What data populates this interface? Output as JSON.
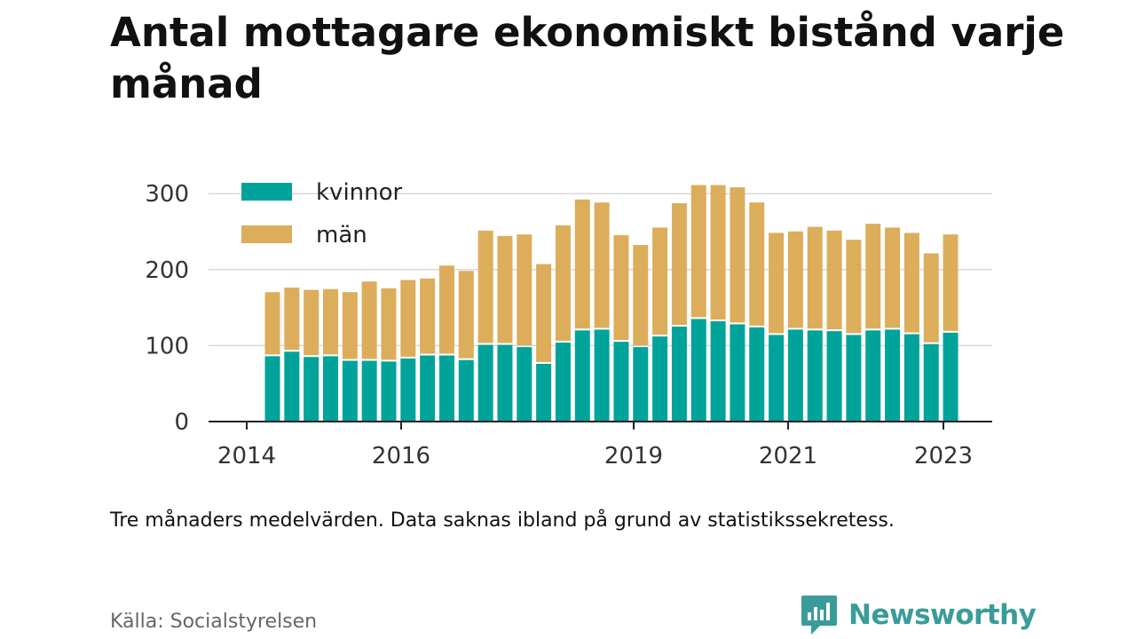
{
  "title": "Antal mottagare ekonomiskt bistånd varje månad",
  "note": "Tre månaders medelvärden. Data saknas ibland på grund av statistikssekretess.",
  "source": "Källa: Socialstyrelsen",
  "brand": "Newsworthy",
  "colors": {
    "women": "#00a39a",
    "men": "#dcad5a",
    "grid": "#d8d8d8",
    "brand": "#3a9c98"
  },
  "chart_data": {
    "type": "bar",
    "stacked": true,
    "legend_position": "top-left",
    "grid": true,
    "ylim": [
      0,
      300
    ],
    "y_ticks": [
      0,
      100,
      200,
      300
    ],
    "x_ticks": [
      "2014",
      "2016",
      "2019",
      "2021",
      "2023"
    ],
    "series": [
      {
        "name": "kvinnor",
        "values": [
          86,
          92,
          85,
          86,
          80,
          80,
          79,
          83,
          87,
          87,
          81,
          101,
          101,
          98,
          76,
          104,
          120,
          121,
          105,
          98,
          112,
          125,
          135,
          132,
          128,
          124,
          114,
          121,
          120,
          119,
          114,
          120,
          121,
          115,
          102,
          117
        ]
      },
      {
        "name": "män",
        "values": [
          82,
          82,
          86,
          86,
          88,
          102,
          94,
          101,
          99,
          116,
          115,
          148,
          141,
          146,
          129,
          152,
          170,
          165,
          138,
          132,
          141,
          160,
          174,
          177,
          178,
          162,
          132,
          127,
          134,
          130,
          123,
          138,
          132,
          131,
          117,
          127
        ]
      }
    ]
  }
}
